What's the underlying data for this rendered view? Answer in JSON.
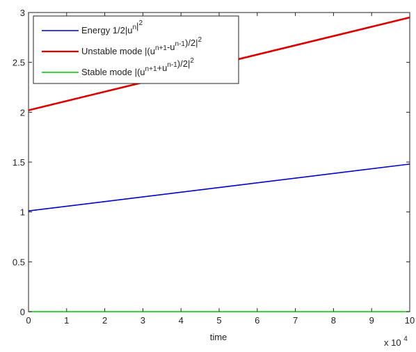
{
  "chart_data": {
    "type": "line",
    "xlabel": "time",
    "x_multiplier_label": {
      "base": "x 10",
      "exponent": "4"
    },
    "xlim": [
      0,
      10
    ],
    "ylim": [
      0,
      3
    ],
    "xticks": [
      0,
      1,
      2,
      3,
      4,
      5,
      6,
      7,
      8,
      9,
      10
    ],
    "xtick_labels": [
      "0",
      "1",
      "2",
      "3",
      "4",
      "5",
      "6",
      "7",
      "8",
      "9",
      "10"
    ],
    "yticks": [
      0,
      0.5,
      1,
      1.5,
      2,
      2.5,
      3
    ],
    "ytick_labels": [
      "0",
      "0.5",
      "1",
      "1.5",
      "2",
      "2.5",
      "3"
    ],
    "grid": false,
    "legend_position": "top-left",
    "series": [
      {
        "name": "Energy 1/2|u^n|^2",
        "legend_parts": [
          [
            "Energy 1/2|u",
            ""
          ],
          [
            "n",
            "sup"
          ],
          [
            "|",
            ""
          ],
          [
            "2",
            "sup"
          ]
        ],
        "color": "#0000cc",
        "x": [
          0,
          10
        ],
        "y": [
          1.01,
          1.48
        ]
      },
      {
        "name": "Unstable mode |(u^{n+1}-u^{n-1})/2|^2",
        "legend_parts": [
          [
            "Unstable mode |(u",
            ""
          ],
          [
            "n+1",
            "sup"
          ],
          [
            "-u",
            ""
          ],
          [
            "n-1",
            "sup"
          ],
          [
            ")/2|",
            ""
          ],
          [
            "2",
            "sup"
          ]
        ],
        "color": "#dd0000",
        "x": [
          0,
          10
        ],
        "y": [
          2.02,
          2.95
        ]
      },
      {
        "name": "Stable mode |(u^{n+1}+u^{n-1})/2|^2",
        "legend_parts": [
          [
            "Stable mode |(u",
            ""
          ],
          [
            "n+1",
            "sup"
          ],
          [
            "+u",
            ""
          ],
          [
            "n-1",
            "sup"
          ],
          [
            ")/2|",
            ""
          ],
          [
            "2",
            "sup"
          ]
        ],
        "color": "#00cc00",
        "x": [
          0,
          10
        ],
        "y": [
          0,
          0
        ]
      }
    ]
  }
}
